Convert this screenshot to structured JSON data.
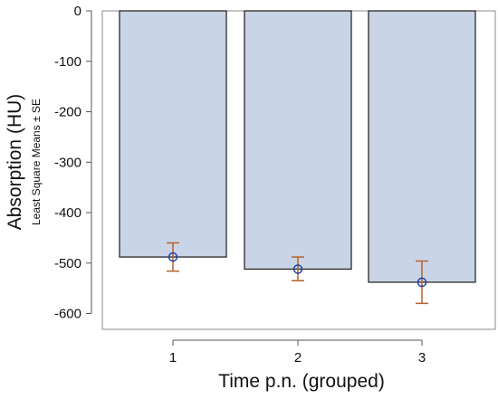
{
  "chart_data": {
    "type": "bar",
    "categories": [
      "1",
      "2",
      "3"
    ],
    "values": [
      -488,
      -512,
      -538
    ],
    "error_bars": [
      {
        "low": -516,
        "high": -460
      },
      {
        "low": -535,
        "high": -488
      },
      {
        "low": -580,
        "high": -496
      }
    ],
    "title": "",
    "xlabel": "Time p.n. (grouped)",
    "ylabel": "Absorption (HU)",
    "ylabel_sub": "Least Square Means ± SE",
    "ylim": [
      -620,
      0
    ],
    "yticks": [
      0,
      -100,
      -200,
      -300,
      -400,
      -500,
      -600
    ],
    "ytick_labels": [
      "0",
      "-100",
      "-200",
      "-300",
      "-400",
      "-500",
      "-600"
    ],
    "grid": false,
    "legend": "none",
    "colors": {
      "bar_fill": "#c9d5e6",
      "bar_stroke": "#1a1a1a",
      "marker": "#1f3fa8",
      "error_bar": "#b5622e",
      "axis": "#555555"
    }
  }
}
